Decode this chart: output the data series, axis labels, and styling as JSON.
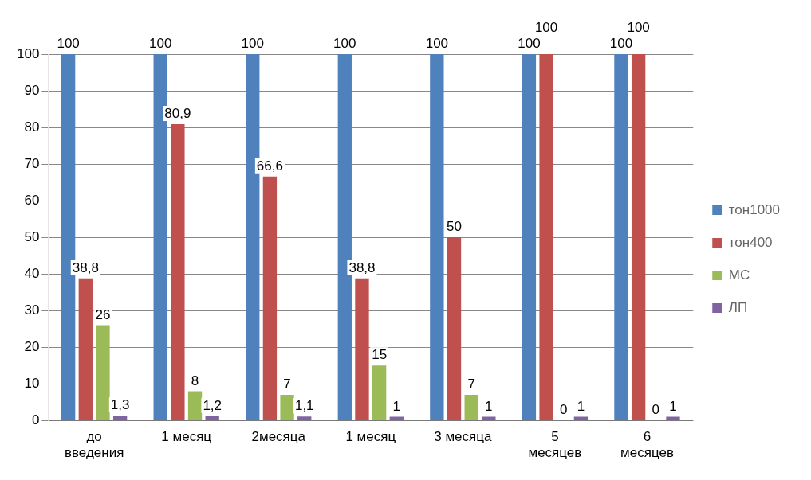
{
  "chart_data": {
    "type": "bar",
    "categories": [
      "до введения",
      "1 месяц",
      "2месяца",
      "1 месяц",
      "3 месяца",
      "5 месяцев",
      "6 месяцев"
    ],
    "series": [
      {
        "name": "тон1000",
        "color": "#4f81bd",
        "values": [
          100,
          100,
          100,
          100,
          100,
          100,
          100
        ],
        "value_labels": [
          "100",
          "100",
          "100",
          "100",
          "100",
          "100",
          "100"
        ]
      },
      {
        "name": "тон400",
        "color": "#c0504d",
        "values": [
          38.8,
          80.9,
          66.6,
          38.8,
          50,
          100,
          100
        ],
        "value_labels": [
          "38,8",
          "80,9",
          "66,6",
          "38,8",
          "50",
          "100",
          "100"
        ]
      },
      {
        "name": "МС",
        "color": "#9bbb59",
        "values": [
          26,
          8,
          7,
          15,
          7,
          0,
          0
        ],
        "value_labels": [
          "26",
          "8",
          "7",
          "15",
          "7",
          "0",
          "0"
        ]
      },
      {
        "name": "ЛП",
        "color": "#8064a2",
        "values": [
          1.3,
          1.2,
          1.1,
          1,
          1,
          1,
          1
        ],
        "value_labels": [
          "1,3",
          "1,2",
          "1,1",
          "1",
          "1",
          "1",
          "1"
        ]
      }
    ],
    "ylim": [
      0,
      100
    ],
    "yticks": [
      0,
      10,
      20,
      30,
      40,
      50,
      60,
      70,
      80,
      90,
      100
    ],
    "grid": "y",
    "legend": "right"
  }
}
